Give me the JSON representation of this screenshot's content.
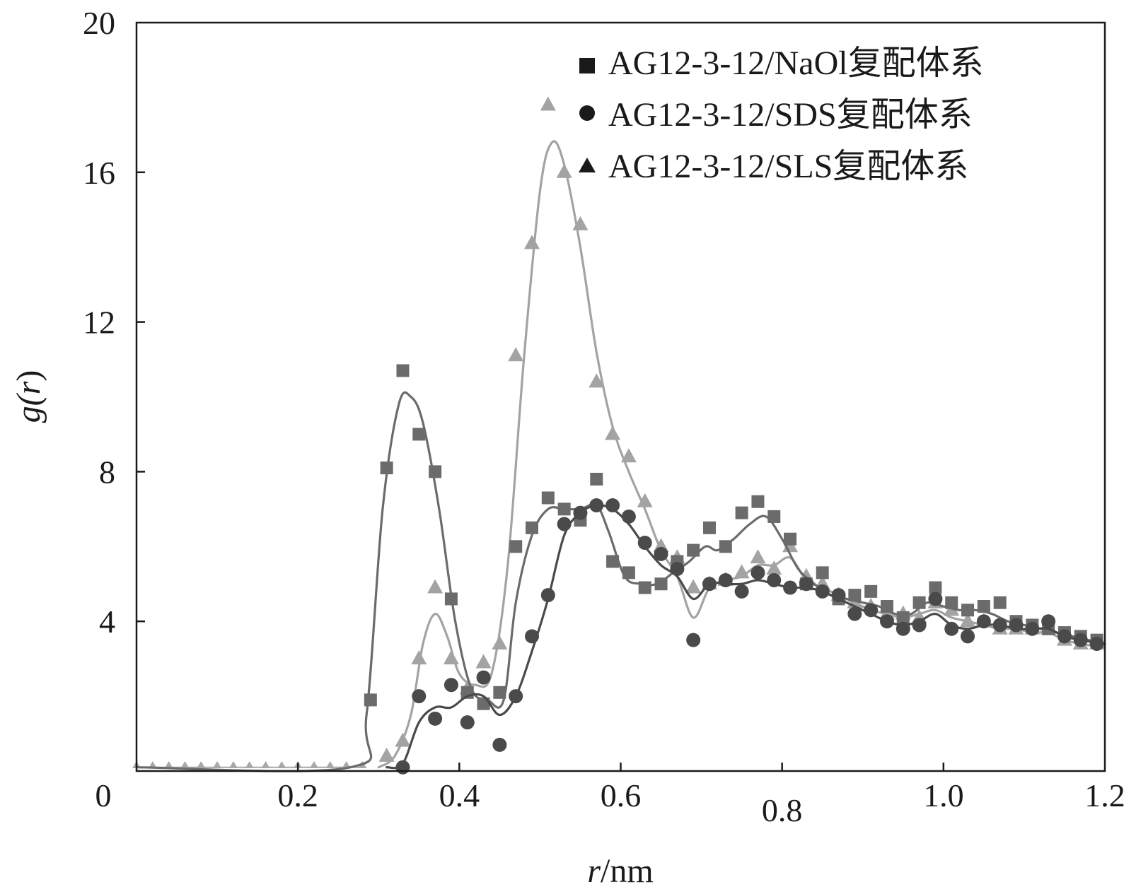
{
  "chart_data": {
    "type": "line",
    "xlabel_italic": "r",
    "xlabel_rest": "/nm",
    "ylabel_func": "g(",
    "ylabel_var": "r",
    "ylabel_close": ")",
    "xlim": [
      0,
      1.2
    ],
    "ylim": [
      0,
      20
    ],
    "x_ticks": [
      {
        "value": 0,
        "label": "0"
      },
      {
        "value": 0.2,
        "label": "0.2"
      },
      {
        "value": 0.4,
        "label": "0.4"
      },
      {
        "value": 0.6,
        "label": "0.6"
      },
      {
        "value": 0.8,
        "label": "0.8"
      },
      {
        "value": 1.0,
        "label": "1.0"
      },
      {
        "value": 1.2,
        "label": "1.2"
      }
    ],
    "y_ticks": [
      {
        "value": 4,
        "label": "4"
      },
      {
        "value": 8,
        "label": "8"
      },
      {
        "value": 12,
        "label": "12"
      },
      {
        "value": 16,
        "label": "16"
      },
      {
        "value": 20,
        "label": "20"
      }
    ],
    "grid": false,
    "legend_position": "top-right",
    "series": [
      {
        "name": "AG12-3-12/NaOl复配体系",
        "marker": "square",
        "color": "#6b6b6b",
        "legend_color": "#1a1a1a",
        "points": [
          [
            0.29,
            1.9
          ],
          [
            0.31,
            8.1
          ],
          [
            0.33,
            10.7
          ],
          [
            0.35,
            9.0
          ],
          [
            0.37,
            8.0
          ],
          [
            0.39,
            4.6
          ],
          [
            0.41,
            2.1
          ],
          [
            0.43,
            1.8
          ],
          [
            0.45,
            2.1
          ],
          [
            0.47,
            6.0
          ],
          [
            0.49,
            6.5
          ],
          [
            0.51,
            7.3
          ],
          [
            0.53,
            7.0
          ],
          [
            0.55,
            6.7
          ],
          [
            0.57,
            7.8
          ],
          [
            0.59,
            5.6
          ],
          [
            0.61,
            5.3
          ],
          [
            0.63,
            4.9
          ],
          [
            0.65,
            5.0
          ],
          [
            0.67,
            5.6
          ],
          [
            0.69,
            5.9
          ],
          [
            0.71,
            6.5
          ],
          [
            0.73,
            6.0
          ],
          [
            0.75,
            6.9
          ],
          [
            0.77,
            7.2
          ],
          [
            0.79,
            6.8
          ],
          [
            0.81,
            6.2
          ],
          [
            0.83,
            5.0
          ],
          [
            0.85,
            5.3
          ],
          [
            0.87,
            4.6
          ],
          [
            0.89,
            4.7
          ],
          [
            0.91,
            4.8
          ],
          [
            0.93,
            4.4
          ],
          [
            0.95,
            4.1
          ],
          [
            0.97,
            4.5
          ],
          [
            0.99,
            4.9
          ],
          [
            1.01,
            4.5
          ],
          [
            1.03,
            4.3
          ],
          [
            1.05,
            4.4
          ],
          [
            1.07,
            4.5
          ],
          [
            1.09,
            4.0
          ],
          [
            1.11,
            3.9
          ],
          [
            1.13,
            3.8
          ],
          [
            1.15,
            3.7
          ],
          [
            1.17,
            3.6
          ],
          [
            1.19,
            3.5
          ]
        ],
        "curve": [
          [
            0.0,
            0.1
          ],
          [
            0.265,
            0.1
          ],
          [
            0.285,
            1.5
          ],
          [
            0.305,
            7.0
          ],
          [
            0.325,
            9.8
          ],
          [
            0.34,
            10.0
          ],
          [
            0.355,
            9.3
          ],
          [
            0.375,
            7.0
          ],
          [
            0.395,
            4.0
          ],
          [
            0.415,
            2.2
          ],
          [
            0.435,
            1.9
          ],
          [
            0.455,
            1.9
          ],
          [
            0.47,
            4.5
          ],
          [
            0.49,
            6.3
          ],
          [
            0.51,
            7.0
          ],
          [
            0.53,
            7.0
          ],
          [
            0.55,
            7.0
          ],
          [
            0.57,
            7.1
          ],
          [
            0.585,
            6.4
          ],
          [
            0.605,
            5.2
          ],
          [
            0.625,
            5.0
          ],
          [
            0.645,
            5.0
          ],
          [
            0.665,
            5.3
          ],
          [
            0.685,
            5.6
          ],
          [
            0.705,
            6.0
          ],
          [
            0.72,
            5.9
          ],
          [
            0.74,
            6.2
          ],
          [
            0.76,
            6.6
          ],
          [
            0.78,
            6.8
          ],
          [
            0.8,
            6.2
          ],
          [
            0.82,
            5.4
          ],
          [
            0.84,
            5.0
          ],
          [
            0.86,
            4.7
          ],
          [
            0.88,
            4.6
          ],
          [
            0.9,
            4.5
          ],
          [
            0.92,
            4.4
          ],
          [
            0.94,
            4.2
          ],
          [
            0.96,
            4.2
          ],
          [
            0.98,
            4.5
          ],
          [
            1.0,
            4.4
          ],
          [
            1.02,
            4.3
          ],
          [
            1.04,
            4.3
          ],
          [
            1.06,
            4.2
          ],
          [
            1.08,
            4.0
          ],
          [
            1.1,
            3.9
          ],
          [
            1.12,
            3.8
          ],
          [
            1.14,
            3.7
          ],
          [
            1.16,
            3.6
          ],
          [
            1.18,
            3.5
          ],
          [
            1.2,
            3.4
          ]
        ]
      },
      {
        "name": "AG12-3-12/SDS复配体系",
        "marker": "circle",
        "color": "#4a4a4a",
        "legend_color": "#1a1a1a",
        "points": [
          [
            0.33,
            0.1
          ],
          [
            0.35,
            2.0
          ],
          [
            0.37,
            1.4
          ],
          [
            0.39,
            2.3
          ],
          [
            0.41,
            1.3
          ],
          [
            0.43,
            2.5
          ],
          [
            0.45,
            0.7
          ],
          [
            0.47,
            2.0
          ],
          [
            0.49,
            3.6
          ],
          [
            0.51,
            4.7
          ],
          [
            0.53,
            6.6
          ],
          [
            0.55,
            6.9
          ],
          [
            0.57,
            7.1
          ],
          [
            0.59,
            7.1
          ],
          [
            0.61,
            6.8
          ],
          [
            0.63,
            6.1
          ],
          [
            0.65,
            5.8
          ],
          [
            0.67,
            5.4
          ],
          [
            0.69,
            3.5
          ],
          [
            0.71,
            5.0
          ],
          [
            0.73,
            5.1
          ],
          [
            0.75,
            4.8
          ],
          [
            0.77,
            5.3
          ],
          [
            0.79,
            5.1
          ],
          [
            0.81,
            4.9
          ],
          [
            0.83,
            5.0
          ],
          [
            0.85,
            4.8
          ],
          [
            0.87,
            4.7
          ],
          [
            0.89,
            4.2
          ],
          [
            0.91,
            4.3
          ],
          [
            0.93,
            4.0
          ],
          [
            0.95,
            3.8
          ],
          [
            0.97,
            3.9
          ],
          [
            0.99,
            4.6
          ],
          [
            1.01,
            3.8
          ],
          [
            1.03,
            3.6
          ],
          [
            1.05,
            4.0
          ],
          [
            1.07,
            3.9
          ],
          [
            1.09,
            3.9
          ],
          [
            1.11,
            3.8
          ],
          [
            1.13,
            4.0
          ],
          [
            1.15,
            3.6
          ],
          [
            1.17,
            3.5
          ],
          [
            1.19,
            3.4
          ]
        ],
        "curve": [
          [
            0.31,
            0.1
          ],
          [
            0.33,
            0.2
          ],
          [
            0.35,
            1.3
          ],
          [
            0.37,
            1.7
          ],
          [
            0.39,
            1.7
          ],
          [
            0.41,
            2.0
          ],
          [
            0.43,
            2.0
          ],
          [
            0.45,
            1.5
          ],
          [
            0.47,
            2.0
          ],
          [
            0.49,
            3.2
          ],
          [
            0.51,
            4.6
          ],
          [
            0.53,
            6.3
          ],
          [
            0.55,
            6.9
          ],
          [
            0.57,
            7.1
          ],
          [
            0.59,
            7.0
          ],
          [
            0.61,
            6.6
          ],
          [
            0.63,
            6.0
          ],
          [
            0.65,
            5.5
          ],
          [
            0.67,
            5.2
          ],
          [
            0.69,
            4.6
          ],
          [
            0.71,
            5.0
          ],
          [
            0.73,
            5.0
          ],
          [
            0.75,
            5.0
          ],
          [
            0.77,
            5.1
          ],
          [
            0.79,
            5.0
          ],
          [
            0.81,
            4.9
          ],
          [
            0.83,
            4.9
          ],
          [
            0.85,
            4.8
          ],
          [
            0.87,
            4.6
          ],
          [
            0.89,
            4.4
          ],
          [
            0.91,
            4.2
          ],
          [
            0.93,
            4.0
          ],
          [
            0.95,
            3.9
          ],
          [
            0.97,
            4.0
          ],
          [
            0.99,
            4.2
          ],
          [
            1.01,
            3.9
          ],
          [
            1.03,
            3.8
          ],
          [
            1.05,
            3.9
          ],
          [
            1.07,
            3.9
          ],
          [
            1.09,
            3.8
          ],
          [
            1.11,
            3.8
          ],
          [
            1.13,
            3.8
          ],
          [
            1.15,
            3.6
          ],
          [
            1.17,
            3.5
          ],
          [
            1.2,
            3.4
          ]
        ]
      },
      {
        "name": "AG12-3-12/SLS复配体系",
        "marker": "triangle",
        "color": "#a3a3a3",
        "legend_color": "#1a1a1a",
        "points": [
          [
            0.31,
            0.4
          ],
          [
            0.33,
            0.8
          ],
          [
            0.35,
            3.0
          ],
          [
            0.37,
            4.9
          ],
          [
            0.39,
            3.0
          ],
          [
            0.41,
            2.2
          ],
          [
            0.43,
            2.9
          ],
          [
            0.45,
            3.4
          ],
          [
            0.47,
            11.1
          ],
          [
            0.49,
            14.1
          ],
          [
            0.51,
            17.8
          ],
          [
            0.53,
            16.0
          ],
          [
            0.55,
            14.6
          ],
          [
            0.57,
            10.4
          ],
          [
            0.59,
            9.0
          ],
          [
            0.61,
            8.4
          ],
          [
            0.63,
            7.2
          ],
          [
            0.65,
            6.0
          ],
          [
            0.67,
            5.7
          ],
          [
            0.69,
            4.9
          ],
          [
            0.71,
            5.0
          ],
          [
            0.73,
            5.1
          ],
          [
            0.75,
            5.3
          ],
          [
            0.77,
            5.7
          ],
          [
            0.79,
            5.4
          ],
          [
            0.81,
            6.0
          ],
          [
            0.83,
            5.2
          ],
          [
            0.85,
            5.0
          ],
          [
            0.87,
            4.7
          ],
          [
            0.89,
            4.5
          ],
          [
            0.91,
            4.4
          ],
          [
            0.93,
            4.2
          ],
          [
            0.95,
            4.2
          ],
          [
            0.97,
            4.1
          ],
          [
            0.99,
            4.5
          ],
          [
            1.01,
            4.3
          ],
          [
            1.03,
            4.0
          ],
          [
            1.05,
            4.0
          ],
          [
            1.07,
            3.8
          ],
          [
            1.09,
            3.8
          ],
          [
            1.11,
            3.8
          ],
          [
            1.13,
            3.8
          ],
          [
            1.15,
            3.5
          ],
          [
            1.17,
            3.4
          ],
          [
            1.19,
            3.4
          ]
        ],
        "curve": [
          [
            0.3,
            0.1
          ],
          [
            0.32,
            0.4
          ],
          [
            0.34,
            1.5
          ],
          [
            0.355,
            3.4
          ],
          [
            0.37,
            4.2
          ],
          [
            0.385,
            3.6
          ],
          [
            0.4,
            2.6
          ],
          [
            0.42,
            2.3
          ],
          [
            0.44,
            2.6
          ],
          [
            0.46,
            5.5
          ],
          [
            0.48,
            11.0
          ],
          [
            0.5,
            15.5
          ],
          [
            0.515,
            16.8
          ],
          [
            0.53,
            16.2
          ],
          [
            0.55,
            14.0
          ],
          [
            0.57,
            11.2
          ],
          [
            0.59,
            9.2
          ],
          [
            0.61,
            8.0
          ],
          [
            0.63,
            7.0
          ],
          [
            0.65,
            5.9
          ],
          [
            0.67,
            5.2
          ],
          [
            0.69,
            4.1
          ],
          [
            0.71,
            4.9
          ],
          [
            0.73,
            5.1
          ],
          [
            0.75,
            5.2
          ],
          [
            0.77,
            5.5
          ],
          [
            0.79,
            5.5
          ],
          [
            0.81,
            5.7
          ],
          [
            0.83,
            5.1
          ],
          [
            0.85,
            4.9
          ],
          [
            0.87,
            4.7
          ],
          [
            0.89,
            4.5
          ],
          [
            0.91,
            4.3
          ],
          [
            0.93,
            4.2
          ],
          [
            0.95,
            4.1
          ],
          [
            0.97,
            4.2
          ],
          [
            0.99,
            4.3
          ],
          [
            1.01,
            4.1
          ],
          [
            1.03,
            4.0
          ],
          [
            1.05,
            3.9
          ],
          [
            1.07,
            3.8
          ],
          [
            1.09,
            3.8
          ],
          [
            1.11,
            3.7
          ],
          [
            1.13,
            3.7
          ],
          [
            1.15,
            3.5
          ],
          [
            1.17,
            3.4
          ],
          [
            1.2,
            3.3
          ]
        ]
      }
    ],
    "baseline_markers": {
      "color": "#a8a8a8",
      "x_start": 0.0,
      "x_end": 0.28,
      "step": 0.02,
      "y": 0.15
    }
  }
}
